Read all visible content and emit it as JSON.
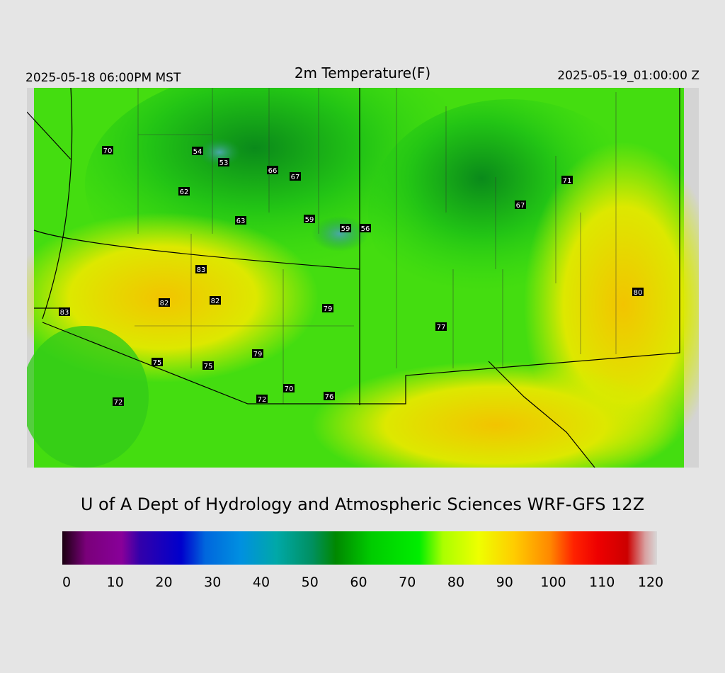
{
  "header": {
    "left": "2025-05-18 06:00PM MST",
    "title": "2m Temperature(F)",
    "right": "2025-05-19_01:00:00 Z"
  },
  "stations": [
    70,
    54,
    53,
    66,
    67,
    62,
    63,
    59,
    59,
    56,
    71,
    67,
    83,
    82,
    82,
    83,
    79,
    77,
    80,
    79,
    75,
    75,
    70,
    72,
    76,
    72
  ],
  "credit": "U of A Dept of Hydrology and Atmospheric Sciences WRF-GFS 12Z",
  "colorbar": {
    "ticks": [
      0,
      10,
      20,
      30,
      40,
      50,
      60,
      70,
      80,
      90,
      100,
      110,
      120
    ]
  }
}
